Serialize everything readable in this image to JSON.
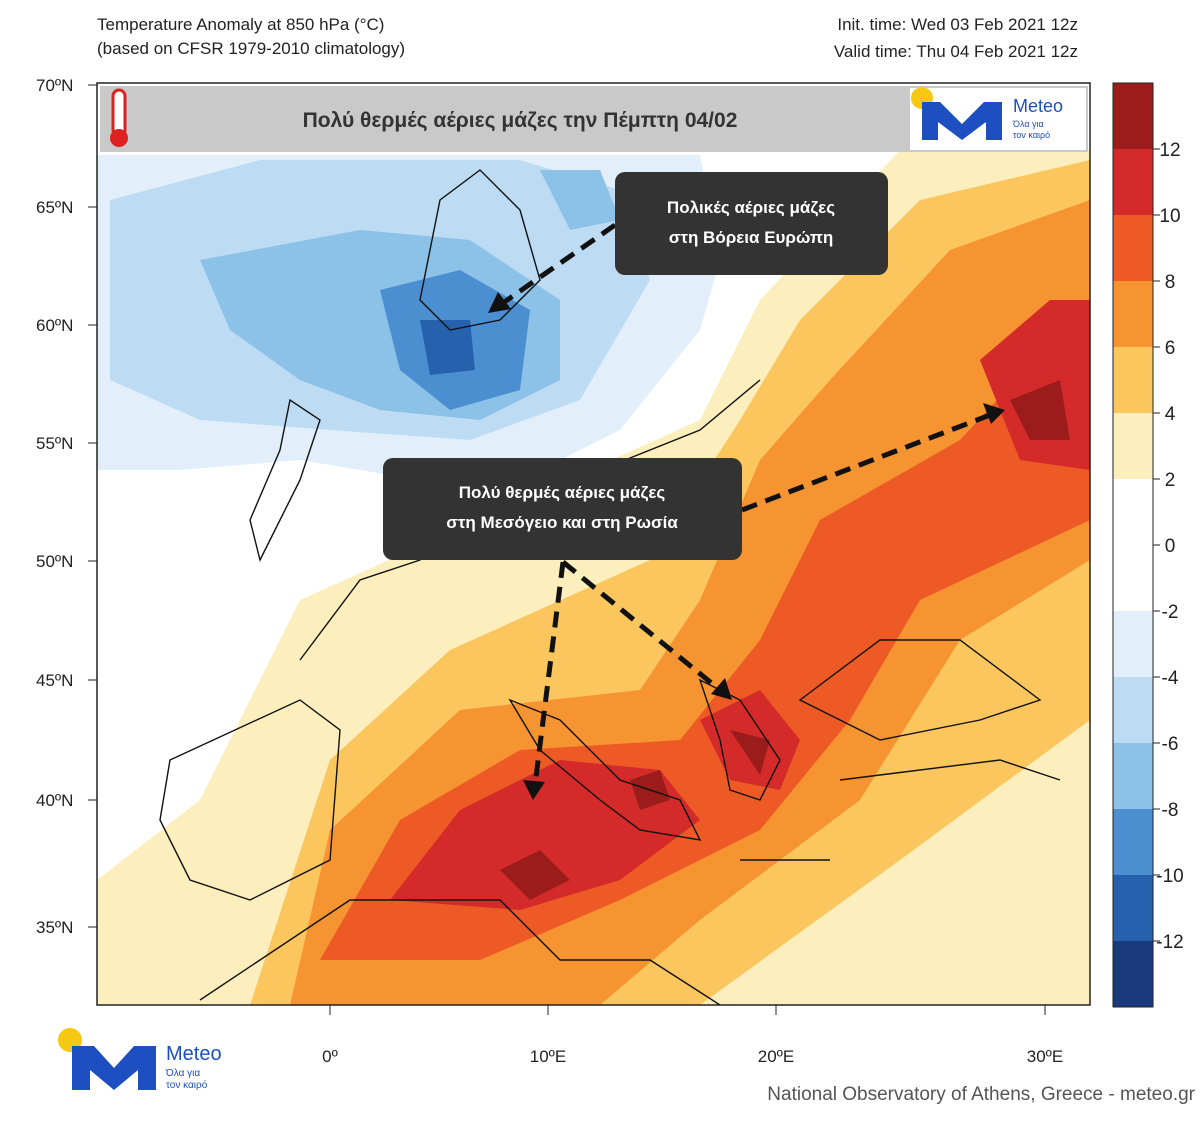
{
  "header": {
    "title_line1": "Temperature Anomaly at 850 hPa (°C)",
    "title_line2": "(based on CFSR 1979-2010 climatology)",
    "init_time": "Init. time: Wed 03 Feb 2021 12z",
    "valid_time": "Valid time: Thu 04 Feb 2021 12z"
  },
  "banner": {
    "title": "Πολύ θερμές αέριες μάζες την Πέμπτη 04/02"
  },
  "annotations": [
    {
      "lines": [
        "Πολικές αέριες μάζες",
        "στη Βόρεια Ευρώπη"
      ]
    },
    {
      "lines": [
        "Πολύ θερμές αέριες μάζες",
        "στη Μεσόγειο και στη Ρωσία"
      ]
    }
  ],
  "lat_labels": [
    "70ºN",
    "65ºN",
    "60ºN",
    "55ºN",
    "50ºN",
    "45ºN",
    "40ºN",
    "35ºN"
  ],
  "lon_labels": [
    "0º",
    "10ºE",
    "20ºE",
    "30ºE"
  ],
  "colorbar": {
    "levels": [
      12,
      10,
      8,
      6,
      4,
      2,
      0,
      -2,
      -4,
      -6,
      -8,
      -10,
      -12
    ],
    "colors": [
      "#9c1c1c",
      "#d42a2a",
      "#ee5a26",
      "#f79432",
      "#fbc65e",
      "#fcefbd",
      "#ffffff",
      "#ffffff",
      "#e2effa",
      "#bddcf3",
      "#8cc1e8",
      "#4c8fd0",
      "#2661ad",
      "#1b3a7e"
    ]
  },
  "logo": {
    "name": "Meteo",
    "tagline_line1": "Όλα για",
    "tagline_line2": "τον καιρό"
  },
  "credit": "National Observatory of Athens, Greece - meteo.gr"
}
